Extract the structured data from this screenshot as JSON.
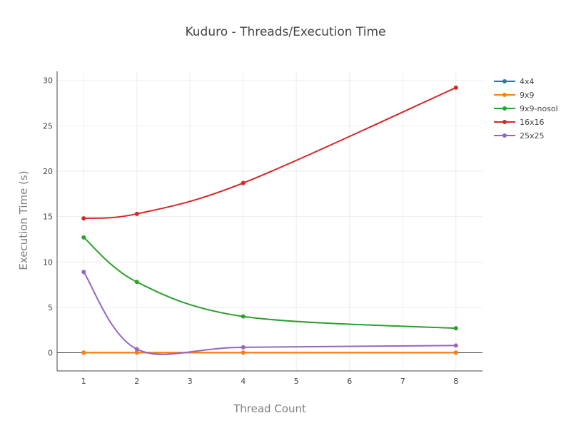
{
  "chart_data": {
    "type": "line",
    "title": "Kuduro - Threads/Execution Time",
    "xlabel": "Thread Count",
    "ylabel": "Execution Time (s)",
    "x": [
      1,
      2,
      4,
      8
    ],
    "xlim": [
      0.5,
      8.5
    ],
    "ylim": [
      -2,
      31
    ],
    "x_ticks": [
      1,
      2,
      3,
      4,
      5,
      6,
      7,
      8
    ],
    "y_ticks": [
      0,
      5,
      10,
      15,
      20,
      25,
      30
    ],
    "grid": true,
    "legend_position": "top-right",
    "series": [
      {
        "name": "4x4",
        "color": "#1f77b4",
        "values": [
          0.01,
          0.01,
          0.01,
          0.01
        ]
      },
      {
        "name": "9x9",
        "color": "#ff7f0e",
        "values": [
          0.02,
          0.02,
          0.02,
          0.02
        ]
      },
      {
        "name": "9x9-nosol",
        "color": "#2ca02c",
        "values": [
          12.7,
          7.8,
          4.0,
          2.7
        ]
      },
      {
        "name": "16x16",
        "color": "#d62728",
        "values": [
          14.8,
          15.3,
          18.7,
          29.2
        ]
      },
      {
        "name": "25x25",
        "color": "#9467bd",
        "values": [
          8.9,
          0.4,
          0.6,
          0.8
        ]
      }
    ]
  }
}
